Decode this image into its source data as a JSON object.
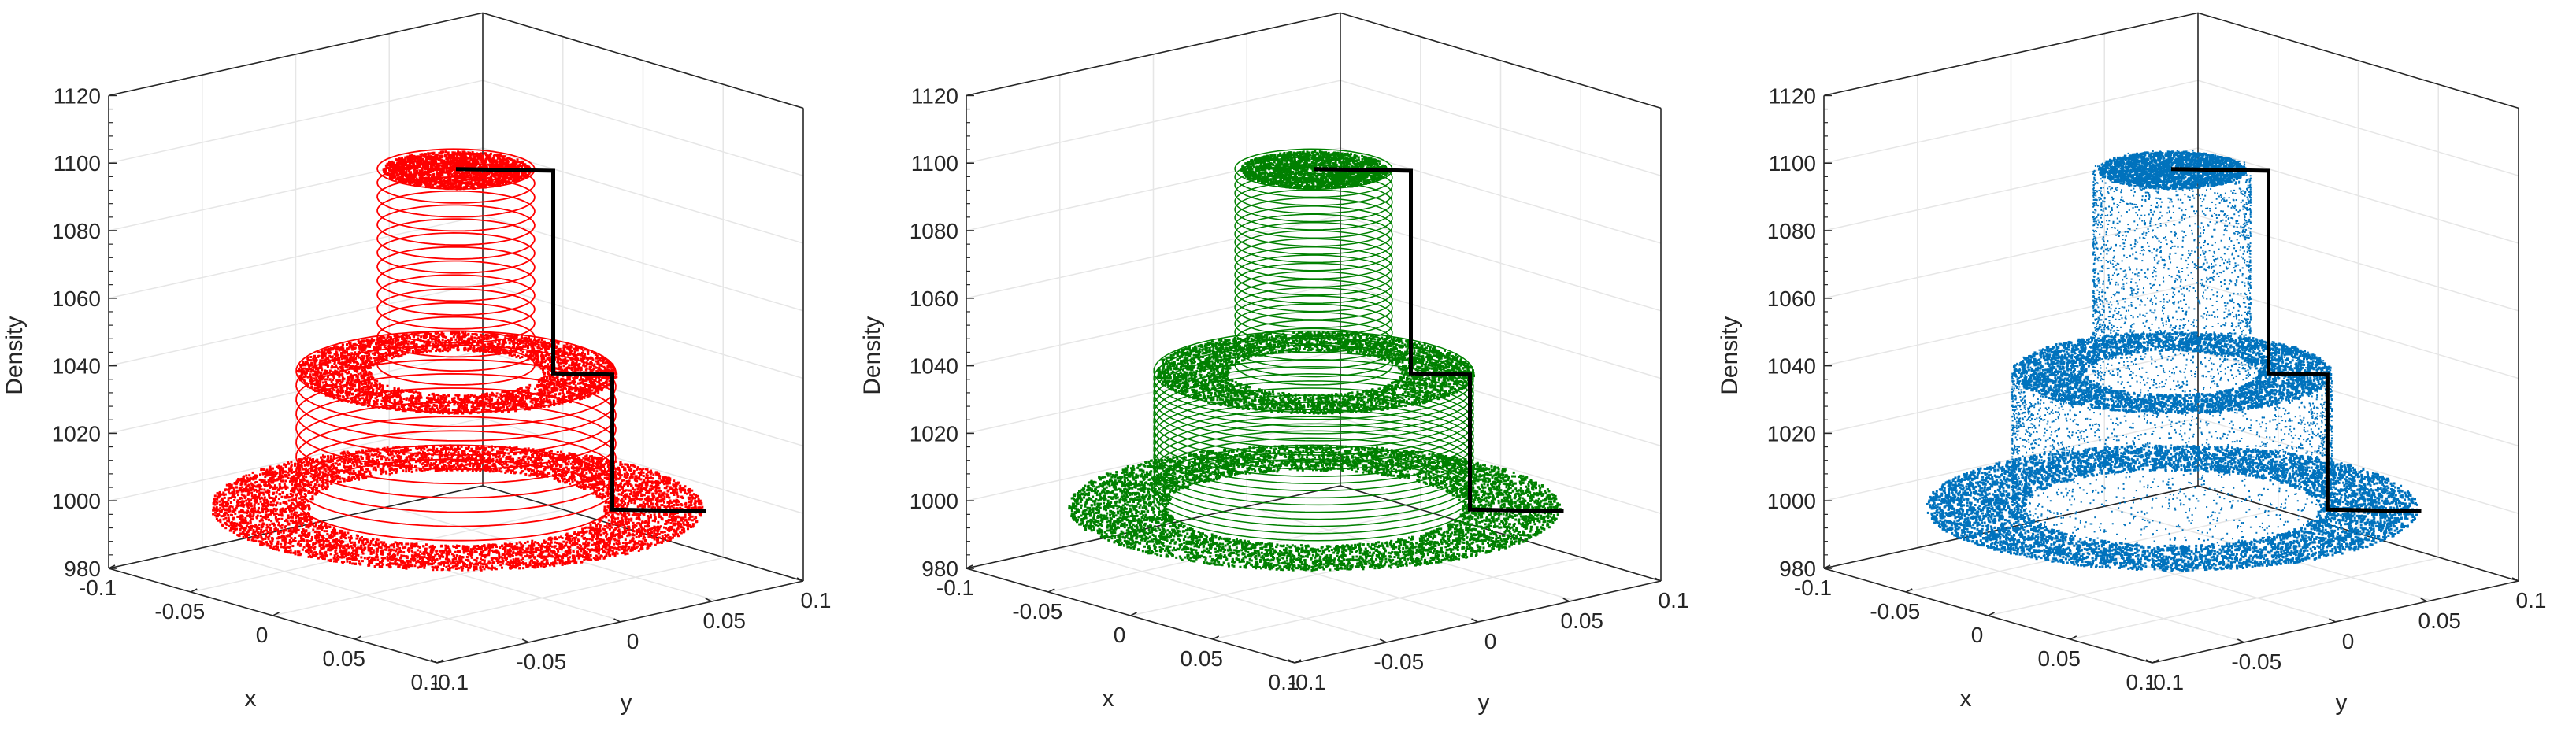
{
  "chart_data": [
    {
      "type": "scatter",
      "subtype": "3d",
      "xlabel": "x",
      "ylabel": "y",
      "zlabel": "Density",
      "xlim": [
        -0.1,
        0.1
      ],
      "ylim": [
        -0.1,
        0.1
      ],
      "zlim": [
        980,
        1120
      ],
      "xticks": [
        "-0.1",
        "-0.05",
        "0",
        "0.05",
        "0.1"
      ],
      "yticks": [
        "-0.1",
        "-0.05",
        "0",
        "0.05",
        "0.1"
      ],
      "zticks": [
        "980",
        "1000",
        "1020",
        "1040",
        "1060",
        "1080",
        "1100",
        "1120"
      ],
      "grid": true,
      "style": "rings",
      "color": "#ff0000",
      "tiers": [
        {
          "density": 1000,
          "r_inner": 0.06,
          "r_outer": 0.1
        },
        {
          "density": 1040,
          "r_inner": 0.035,
          "r_outer": 0.065
        },
        {
          "density": 1100,
          "r_inner": 0.0,
          "r_outer": 0.03
        }
      ]
    },
    {
      "type": "scatter",
      "subtype": "3d",
      "xlabel": "x",
      "ylabel": "y",
      "zlabel": "Density",
      "xlim": [
        -0.1,
        0.1
      ],
      "ylim": [
        -0.1,
        0.1
      ],
      "zlim": [
        980,
        1120
      ],
      "xticks": [
        "-0.1",
        "-0.05",
        "0",
        "0.05",
        "0.1"
      ],
      "yticks": [
        "-0.1",
        "-0.05",
        "0",
        "0.05",
        "0.1"
      ],
      "zticks": [
        "980",
        "1000",
        "1020",
        "1040",
        "1060",
        "1080",
        "1100",
        "1120"
      ],
      "grid": true,
      "style": "dense_rings",
      "color": "#008000",
      "tiers": [
        {
          "density": 1000,
          "r_inner": 0.06,
          "r_outer": 0.1
        },
        {
          "density": 1040,
          "r_inner": 0.035,
          "r_outer": 0.065
        },
        {
          "density": 1100,
          "r_inner": 0.0,
          "r_outer": 0.03
        }
      ]
    },
    {
      "type": "scatter",
      "subtype": "3d",
      "xlabel": "x",
      "ylabel": "y",
      "zlabel": "Density",
      "xlim": [
        -0.1,
        0.1
      ],
      "ylim": [
        -0.1,
        0.1
      ],
      "zlim": [
        980,
        1120
      ],
      "xticks": [
        "-0.1",
        "-0.05",
        "0",
        "0.05",
        "0.1"
      ],
      "yticks": [
        "-0.1",
        "-0.05",
        "0",
        "0.05",
        "0.1"
      ],
      "zticks": [
        "980",
        "1000",
        "1020",
        "1040",
        "1060",
        "1080",
        "1100",
        "1120"
      ],
      "grid": true,
      "style": "random_points",
      "color": "#0072bd",
      "tiers": [
        {
          "density": 1000,
          "r_inner": 0.06,
          "r_outer": 0.1
        },
        {
          "density": 1040,
          "r_inner": 0.035,
          "r_outer": 0.065
        },
        {
          "density": 1100,
          "r_inner": 0.0,
          "r_outer": 0.03
        }
      ]
    }
  ]
}
